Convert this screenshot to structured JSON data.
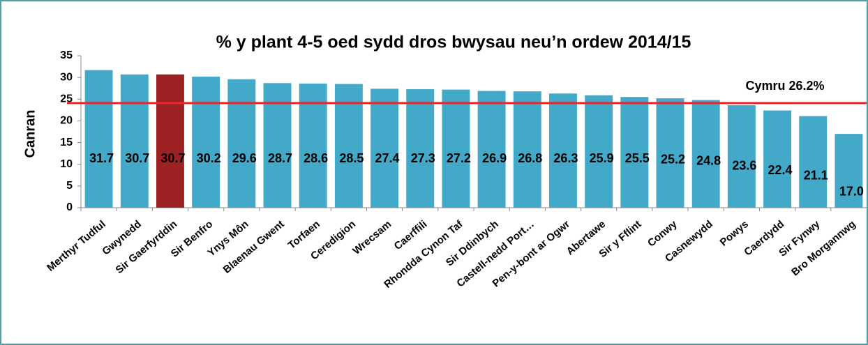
{
  "chart_data": {
    "type": "bar",
    "title": "% y plant 4-5 oed sydd dros bwysau neu’n ordew 2014/15",
    "y_label": "Canran",
    "annotation": "Cymru 26.2%",
    "categories": [
      "Merthyr Tudful",
      "Gwynedd",
      "Sir Gaerfyrddin",
      "Sir Benfro",
      "Ynys Môn",
      "Blaenau Gwent",
      "Torfaen",
      "Ceredigion",
      "Wrecsam",
      "Caerffili",
      "Rhondda Cynon Taf",
      "Sir Ddinbych",
      "Castell-nedd Port…",
      "Pen-y-bont ar Ogwr",
      "Abertawe",
      "Sir y Fflint",
      "Conwy",
      "Casnewydd",
      "Powys",
      "Caerdydd",
      "Sir Fynwy",
      "Bro Morgannwg"
    ],
    "values": [
      31.7,
      30.7,
      30.7,
      30.2,
      29.6,
      28.7,
      28.6,
      28.5,
      27.4,
      27.3,
      27.2,
      26.9,
      26.8,
      26.3,
      25.9,
      25.5,
      25.2,
      24.8,
      23.6,
      22.4,
      21.1,
      17
    ],
    "value_labels": [
      "31.7",
      "30.7",
      "30.7",
      "30.2",
      "29.6",
      "28.7",
      "28.6",
      "28.5",
      "27.4",
      "27.3",
      "27.2",
      "26.9",
      "26.8",
      "26.3",
      "25.9",
      "25.5",
      "25.2",
      "24.8",
      "23.6",
      "22.4",
      "21.1",
      "17.0"
    ],
    "colors": [
      "#42a9c8",
      "#42a9c8",
      "#9b2122",
      "#42a9c8",
      "#42a9c8",
      "#42a9c8",
      "#42a9c8",
      "#42a9c8",
      "#42a9c8",
      "#42a9c8",
      "#42a9c8",
      "#42a9c8",
      "#42a9c8",
      "#42a9c8",
      "#42a9c8",
      "#42a9c8",
      "#42a9c8",
      "#42a9c8",
      "#42a9c8",
      "#42a9c8",
      "#42a9c8",
      "#42a9c8"
    ],
    "reference_line": {
      "value": 24.1,
      "color": "#e8262b"
    },
    "ylim": [
      0,
      35
    ],
    "yticks": [
      0,
      5,
      10,
      15,
      20,
      25,
      30,
      35
    ],
    "grid": false
  }
}
